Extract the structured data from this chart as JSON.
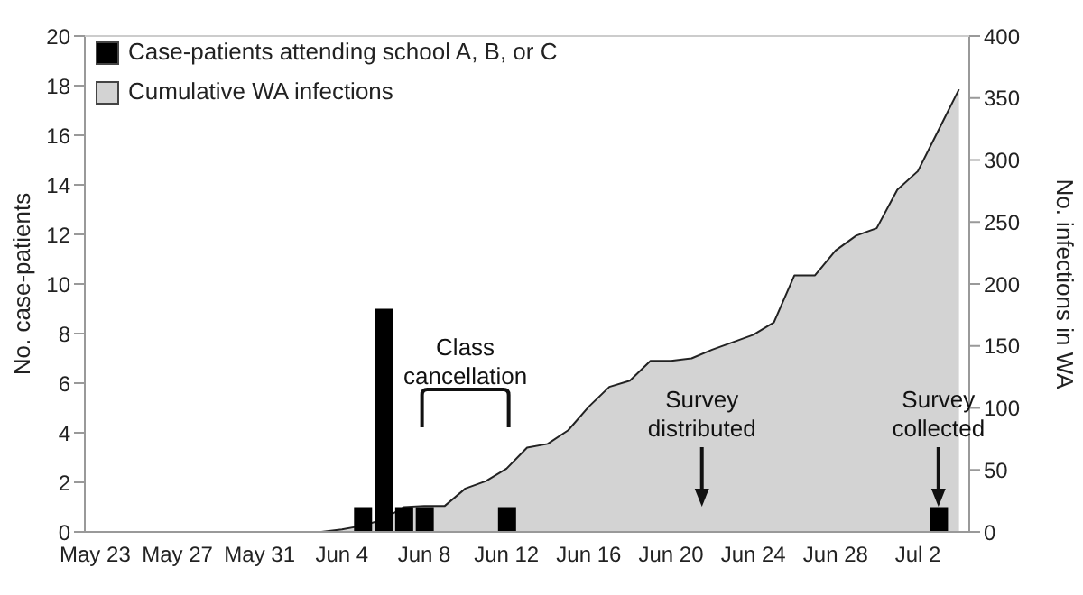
{
  "chart_data": {
    "type": "bar",
    "categories": [
      "May 23",
      null,
      null,
      null,
      "May 27",
      null,
      null,
      null,
      "May 31",
      null,
      null,
      null,
      "Jun 4",
      null,
      null,
      null,
      "Jun 8",
      null,
      null,
      null,
      "Jun 12",
      null,
      null,
      null,
      "Jun 16",
      null,
      null,
      null,
      "Jun 20",
      null,
      null,
      null,
      "Jun 24",
      null,
      null,
      null,
      "Jun 28",
      null,
      null,
      null,
      "Jul 2",
      null,
      null
    ],
    "series": [
      {
        "name": "Cumulative WA infections",
        "type": "area",
        "axis": "y2",
        "color": "#d3d3d3",
        "values": [
          0,
          0,
          0,
          0,
          0,
          0,
          0,
          0,
          0,
          0,
          0,
          0,
          2,
          5,
          10,
          20,
          21,
          21,
          35,
          41,
          51,
          68,
          71,
          82,
          101,
          117,
          122,
          138,
          138,
          140,
          147,
          153,
          159,
          169,
          207,
          207,
          227,
          239,
          245,
          276,
          291,
          324,
          357
        ]
      },
      {
        "name": "Case-patients attending school A, B, or C",
        "color": "#000000",
        "values": [
          null,
          null,
          null,
          null,
          null,
          null,
          null,
          null,
          null,
          null,
          null,
          null,
          null,
          1,
          9,
          1,
          1,
          null,
          null,
          null,
          1,
          null,
          null,
          null,
          null,
          null,
          null,
          null,
          null,
          null,
          null,
          null,
          null,
          null,
          null,
          null,
          null,
          null,
          null,
          null,
          null,
          1,
          null
        ]
      }
    ],
    "ylabel": "No. case-patients",
    "y2label": "No. infections in WA",
    "ylim": [
      0,
      20
    ],
    "yticks": [
      0,
      2,
      4,
      6,
      8,
      10,
      12,
      14,
      16,
      18,
      20
    ],
    "y2lim": [
      0,
      400
    ],
    "y2ticks": [
      0,
      50,
      100,
      150,
      200,
      250,
      300,
      350,
      400
    ],
    "legend": "top left",
    "grid": false,
    "annotations": [
      "Class cancellation",
      "Survey distributed",
      "Survey collected"
    ]
  }
}
